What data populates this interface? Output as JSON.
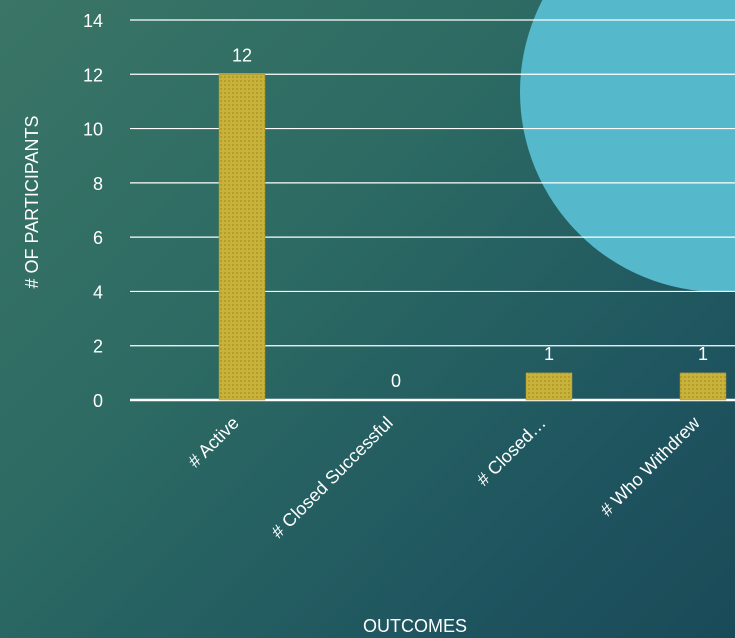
{
  "chart_data": {
    "type": "bar",
    "categories": [
      "# Active",
      "# Closed Successful",
      "# Closed…",
      "# Who Withdrew"
    ],
    "values": [
      12,
      0,
      1,
      1
    ],
    "data_labels": [
      "12",
      "0",
      "1",
      "1"
    ],
    "title": "",
    "xlabel": "OUTCOMES",
    "ylabel": "# OF PARTICIPANTS",
    "ylim": [
      0,
      14
    ],
    "yticks": [
      "0",
      "2",
      "4",
      "6",
      "8",
      "10",
      "12",
      "14"
    ],
    "grid": true,
    "legend": "none"
  },
  "colors": {
    "bar": "#c9b23a",
    "bar_stroke": "#a8912a",
    "gridline": "#ffffff",
    "text": "#ffffff",
    "circle": "#56b9cb"
  }
}
